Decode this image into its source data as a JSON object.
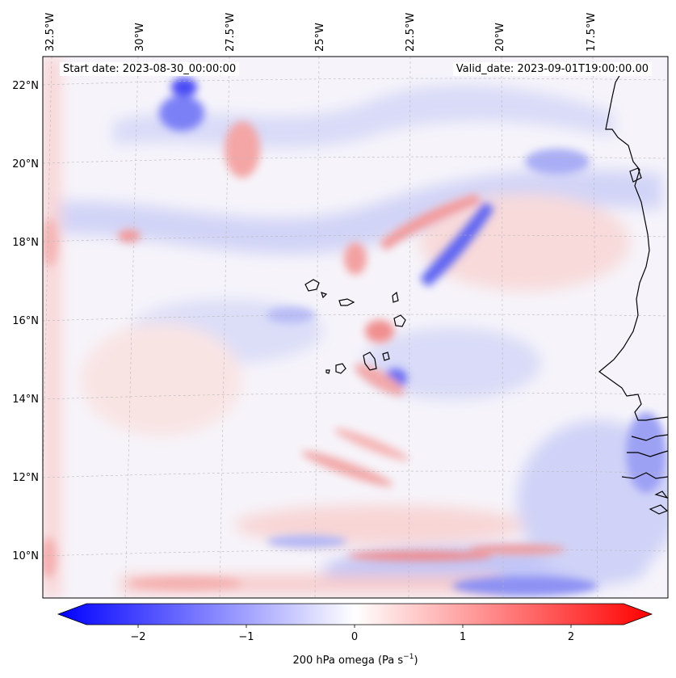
{
  "map": {
    "start_label": "Start date: 2023-08-30_00:00:00",
    "valid_label": "Valid_date: 2023-09-01T19:00:00.00",
    "lon_ticks": [
      "32.5°W",
      "30°W",
      "27.5°W",
      "25°W",
      "22.5°W",
      "20°W",
      "17.5°W"
    ],
    "lat_ticks": [
      "22°N",
      "20°N",
      "18°N",
      "16°N",
      "14°N",
      "12°N",
      "10°N"
    ],
    "field_colors": {
      "negative": "#0000ff",
      "zero": "#ffffff",
      "positive": "#ff0000"
    }
  },
  "colorbar": {
    "ticks": [
      "−2",
      "−1",
      "0",
      "1",
      "2"
    ],
    "min": -2.75,
    "max": 2.75,
    "label": "200 hPa omega (Pa s",
    "label_sup": "−1",
    "label_end": ")"
  }
}
